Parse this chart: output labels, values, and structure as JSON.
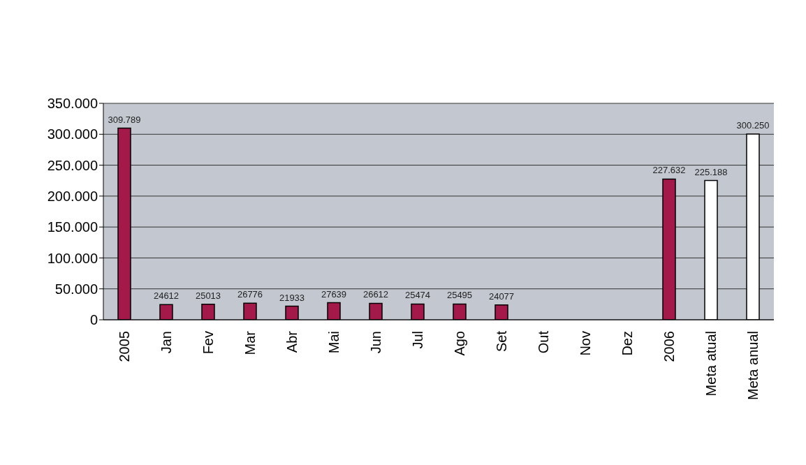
{
  "chart_data": {
    "type": "bar",
    "categories": [
      "2005",
      "Jan",
      "Fev",
      "Mar",
      "Abr",
      "Mai",
      "Jun",
      "Jul",
      "Ago",
      "Set",
      "Out",
      "Nov",
      "Dez",
      "2006",
      "Meta atual",
      "Meta anual"
    ],
    "values": [
      309789,
      24612,
      25013,
      26776,
      21933,
      27639,
      26612,
      25474,
      25495,
      24077,
      null,
      null,
      null,
      227632,
      225188,
      300250
    ],
    "colors": [
      "#a3194a",
      "#a3194a",
      "#a3194a",
      "#a3194a",
      "#a3194a",
      "#a3194a",
      "#a3194a",
      "#a3194a",
      "#a3194a",
      "#a3194a",
      "#a3194a",
      "#a3194a",
      "#a3194a",
      "#a3194a",
      "#ffffff",
      "#ffffff"
    ],
    "value_labels": [
      "309.789",
      "24612",
      "25013",
      "26776",
      "21933",
      "27639",
      "26612",
      "25474",
      "25495",
      "24077",
      null,
      null,
      null,
      "227.632",
      "225.188",
      "300.250"
    ],
    "ylim": [
      0,
      350000
    ],
    "yticks": [
      {
        "value": 0,
        "label": "0"
      },
      {
        "value": 50000,
        "label": "50.000"
      },
      {
        "value": 100000,
        "label": "100.000"
      },
      {
        "value": 150000,
        "label": "150.000"
      },
      {
        "value": 200000,
        "label": "200.000"
      },
      {
        "value": 250000,
        "label": "250.000"
      },
      {
        "value": 300000,
        "label": "300.000"
      },
      {
        "value": 350000,
        "label": "350.000"
      }
    ],
    "grid": "y",
    "legend": false
  }
}
